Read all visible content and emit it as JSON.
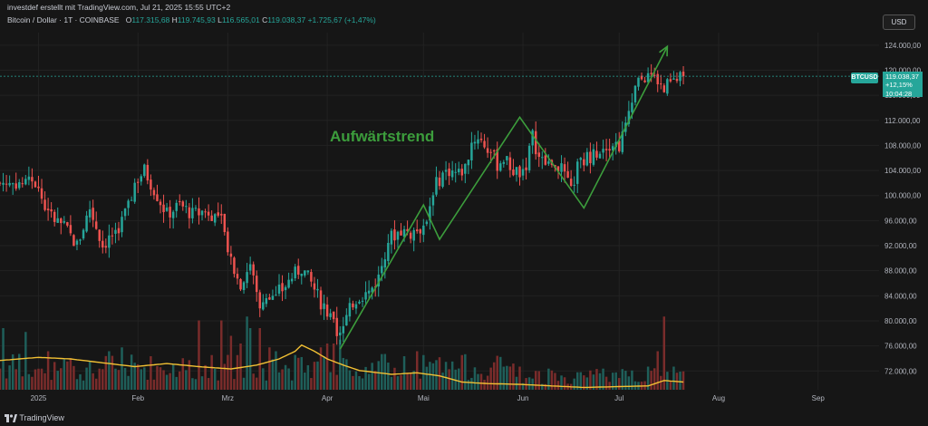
{
  "header": {
    "author_line": "investdef erstellt mit TradingView.com, Jul 21, 2025 15:55 UTC+2",
    "symbol": "Bitcoin / Dollar · 1T · COINBASE",
    "open_label": "O",
    "open": "117.315,68",
    "high_label": "H",
    "high": "119.745,93",
    "low_label": "L",
    "low": "116.565,01",
    "close_label": "C",
    "close": "119.038,37",
    "change": "+1.725,67 (+1,47%)"
  },
  "currency_button": "USD",
  "branding": {
    "name": "TradingView"
  },
  "price_marker": {
    "ticker": "BTCUSD",
    "price": "119.038,37",
    "change_pct": "+12,15%",
    "countdown": "10:04:28"
  },
  "annotation": {
    "text": "Aufwärtstrend",
    "color": "#3c9d3c"
  },
  "colors": {
    "up": "#26a69a",
    "down": "#ef5350",
    "ma": "#f2c033",
    "trend": "#3c9d3c",
    "background": "#161616"
  },
  "chart_data": {
    "type": "candlestick",
    "title": "Bitcoin / Dollar · 1T · COINBASE",
    "y_ticks": [
      "124.000,00",
      "120.000,00",
      "116.000,00",
      "112.000,00",
      "108.000,00",
      "104.000,00",
      "100.000,00",
      "96.000,00",
      "92.000,00",
      "88.000,00",
      "84.000,00",
      "80.000,00",
      "76.000,00",
      "72.000,00"
    ],
    "y_tick_values": [
      124000,
      120000,
      116000,
      112000,
      108000,
      104000,
      100000,
      96000,
      92000,
      88000,
      84000,
      80000,
      76000,
      72000
    ],
    "ylim": [
      69000,
      126000
    ],
    "x_ticks": [
      "2025",
      "Feb",
      "Mrz",
      "Apr",
      "Mai",
      "Jun",
      "Jul",
      "Aug",
      "Sep"
    ],
    "x_tick_days": [
      0,
      31,
      59,
      90,
      120,
      151,
      181,
      212,
      243
    ],
    "x_range_days": [
      -12,
      262
    ],
    "last_day": 201,
    "current_price": 119038.37,
    "close_path": [
      [
        -1,
        102000
      ],
      [
        3,
        97000
      ],
      [
        8,
        95000
      ],
      [
        12,
        92000
      ],
      [
        16,
        98000
      ],
      [
        20,
        92000
      ],
      [
        25,
        95000
      ],
      [
        28,
        98000
      ],
      [
        30,
        102000
      ],
      [
        33,
        104000
      ],
      [
        36,
        101000
      ],
      [
        40,
        97000
      ],
      [
        44,
        98500
      ],
      [
        48,
        97000
      ],
      [
        53,
        97500
      ],
      [
        57,
        96000
      ],
      [
        60,
        90000
      ],
      [
        63,
        86000
      ],
      [
        66,
        89000
      ],
      [
        69,
        82000
      ],
      [
        73,
        84000
      ],
      [
        76,
        85000
      ],
      [
        79,
        87000
      ],
      [
        82,
        88500
      ],
      [
        85,
        86000
      ],
      [
        88,
        83000
      ],
      [
        91,
        80500
      ],
      [
        93,
        78000
      ],
      [
        95,
        79000
      ],
      [
        98,
        83000
      ],
      [
        100,
        84000
      ],
      [
        103,
        84500
      ],
      [
        106,
        87000
      ],
      [
        109,
        93000
      ],
      [
        113,
        94500
      ],
      [
        116,
        94000
      ],
      [
        119,
        94800
      ],
      [
        121,
        96000
      ],
      [
        123,
        101000
      ],
      [
        126,
        103500
      ],
      [
        128,
        104000
      ],
      [
        131,
        103500
      ],
      [
        133,
        104500
      ],
      [
        135,
        108500
      ],
      [
        137,
        109500
      ],
      [
        139,
        108000
      ],
      [
        141,
        107000
      ],
      [
        143,
        105000
      ],
      [
        145,
        106000
      ],
      [
        148,
        104000
      ],
      [
        150,
        103500
      ],
      [
        152,
        105000
      ],
      [
        154,
        109500
      ],
      [
        156,
        106000
      ],
      [
        158,
        105000
      ],
      [
        160,
        105500
      ],
      [
        162,
        105000
      ],
      [
        164,
        103000
      ],
      [
        166,
        100500
      ],
      [
        168,
        104500
      ],
      [
        171,
        106000
      ],
      [
        174,
        107000
      ],
      [
        176,
        108000
      ],
      [
        179,
        108500
      ],
      [
        181,
        108000
      ],
      [
        183,
        111000
      ],
      [
        185,
        116000
      ],
      [
        187,
        118000
      ],
      [
        189,
        119000
      ],
      [
        192,
        118000
      ],
      [
        195,
        117500
      ],
      [
        198,
        118000
      ],
      [
        201,
        119038
      ]
    ],
    "volume_scale": [
      0,
      1
    ],
    "ma_path": [
      [
        -12,
        0.38
      ],
      [
        0,
        0.42
      ],
      [
        10,
        0.4
      ],
      [
        20,
        0.35
      ],
      [
        30,
        0.3
      ],
      [
        40,
        0.34
      ],
      [
        50,
        0.3
      ],
      [
        60,
        0.27
      ],
      [
        68,
        0.32
      ],
      [
        75,
        0.4
      ],
      [
        80,
        0.5
      ],
      [
        82,
        0.58
      ],
      [
        86,
        0.5
      ],
      [
        90,
        0.4
      ],
      [
        95,
        0.32
      ],
      [
        100,
        0.25
      ],
      [
        110,
        0.2
      ],
      [
        118,
        0.22
      ],
      [
        125,
        0.18
      ],
      [
        132,
        0.1
      ],
      [
        140,
        0.08
      ],
      [
        150,
        0.07
      ],
      [
        160,
        0.05
      ],
      [
        170,
        0.03
      ],
      [
        180,
        0.04
      ],
      [
        190,
        0.05
      ],
      [
        195,
        0.12
      ],
      [
        201,
        0.1
      ]
    ],
    "volume_spikes": [
      [
        -11,
        0.8
      ],
      [
        -4,
        0.75
      ],
      [
        3,
        0.5
      ],
      [
        22,
        0.5
      ],
      [
        26,
        0.55
      ],
      [
        50,
        0.9
      ],
      [
        54,
        0.45
      ],
      [
        57,
        0.9
      ],
      [
        60,
        0.7
      ],
      [
        63,
        0.6
      ],
      [
        65,
        0.95
      ],
      [
        66,
        0.8
      ],
      [
        69,
        0.8
      ],
      [
        72,
        0.55
      ],
      [
        74,
        0.5
      ],
      [
        88,
        0.55
      ],
      [
        90,
        0.6
      ],
      [
        92,
        0.6
      ],
      [
        94,
        0.65
      ],
      [
        118,
        0.5
      ],
      [
        120,
        0.45
      ],
      [
        150,
        0.3
      ],
      [
        160,
        0.25
      ],
      [
        172,
        0.25
      ],
      [
        185,
        0.25
      ],
      [
        190,
        0.3
      ],
      [
        193,
        0.5
      ],
      [
        195,
        0.95
      ],
      [
        198,
        0.3
      ]
    ],
    "trend_lines": [
      [
        [
          94,
          75500
        ],
        [
          120,
          98500
        ],
        [
          125,
          93000
        ],
        [
          150,
          112500
        ],
        [
          170,
          98000
        ],
        [
          196,
          123800
        ]
      ]
    ],
    "trend_arrow_tip": [
      196,
      123800
    ]
  }
}
